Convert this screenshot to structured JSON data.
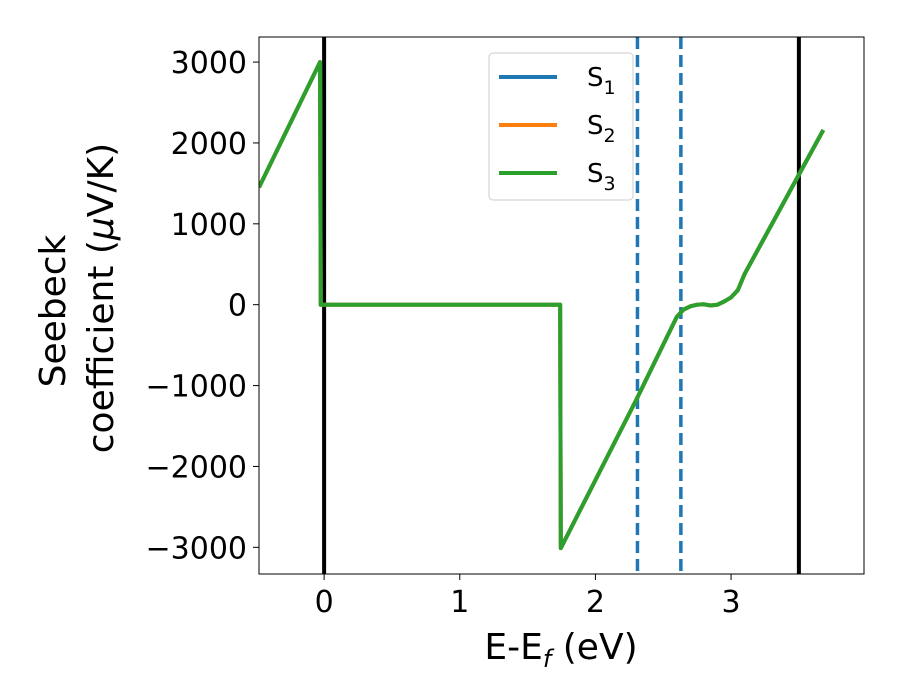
{
  "chart_data": {
    "type": "line",
    "xlabel": "E-E",
    "xlabel_sub": "f",
    "xlabel_unit": " (eV)",
    "ylabel_line1": "Seebeck",
    "ylabel_line2": "coefficient  (",
    "ylabel_mu": "μ",
    "ylabel_unit": "V/K)",
    "xlim": [
      -0.48,
      3.98
    ],
    "ylim": [
      -3330,
      3310
    ],
    "x_ticks": [
      0,
      1,
      2,
      3
    ],
    "x_tick_labels": [
      "0",
      "1",
      "2",
      "3"
    ],
    "y_ticks": [
      -3000,
      -2000,
      -1000,
      0,
      1000,
      2000,
      3000
    ],
    "y_tick_labels": [
      "−3000",
      "−2000",
      "−1000",
      "0",
      "1000",
      "2000",
      "3000"
    ],
    "grid": false,
    "legend_position": "upper-center",
    "series": [
      {
        "name": "S",
        "sub": "1",
        "color": "#1f77b4",
        "x": [
          -0.48,
          -0.03,
          -0.025,
          1.74,
          1.745,
          2.3,
          2.6,
          2.65,
          2.7,
          2.75,
          2.8,
          2.85,
          2.9,
          2.95,
          3.0,
          3.05,
          3.1,
          3.68
        ],
        "y": [
          1450,
          3000,
          0,
          0,
          -3010,
          -1180,
          -150,
          -60,
          -20,
          0,
          5,
          -10,
          0,
          40,
          90,
          180,
          380,
          2160
        ]
      },
      {
        "name": "S",
        "sub": "2",
        "color": "#ff7f0e",
        "x": [
          -0.48,
          -0.03,
          -0.025,
          1.74,
          1.745,
          2.3,
          2.6,
          2.65,
          2.7,
          2.75,
          2.8,
          2.85,
          2.9,
          2.95,
          3.0,
          3.05,
          3.1,
          3.68
        ],
        "y": [
          1450,
          3000,
          0,
          0,
          -3010,
          -1180,
          -150,
          -60,
          -20,
          0,
          5,
          -10,
          0,
          40,
          90,
          180,
          380,
          2160
        ]
      },
      {
        "name": "S",
        "sub": "3",
        "color": "#2ca02c",
        "x": [
          -0.48,
          -0.03,
          -0.025,
          1.74,
          1.745,
          2.3,
          2.6,
          2.65,
          2.7,
          2.75,
          2.8,
          2.85,
          2.9,
          2.95,
          3.0,
          3.05,
          3.1,
          3.68
        ],
        "y": [
          1450,
          3000,
          0,
          0,
          -3010,
          -1180,
          -150,
          -60,
          -20,
          0,
          5,
          -10,
          0,
          40,
          90,
          180,
          380,
          2160
        ]
      }
    ],
    "vlines": [
      {
        "x": 0.0,
        "style": "solid",
        "color": "#000000"
      },
      {
        "x": 3.5,
        "style": "solid",
        "color": "#000000"
      },
      {
        "x": 2.31,
        "style": "dashed",
        "color": "#1f77b4"
      },
      {
        "x": 2.63,
        "style": "dashed",
        "color": "#1f77b4"
      }
    ]
  }
}
